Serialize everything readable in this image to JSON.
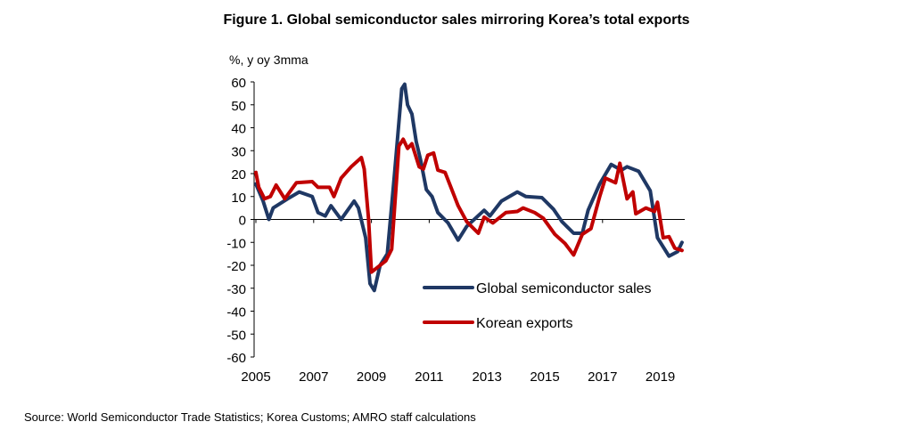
{
  "chart_data": {
    "type": "line",
    "title": "Figure 1. Global semiconductor sales mirroring Korea’s total exports",
    "ylabel": "%, y oy 3mma",
    "xlabel": "",
    "source": "Source: World Semiconductor Trade Statistics; Korea Customs; AMRO staff calculations",
    "ylim": [
      -60,
      60
    ],
    "xlim": [
      2005,
      2019.8
    ],
    "yticks": [
      60,
      50,
      40,
      30,
      20,
      10,
      0,
      -10,
      -20,
      -30,
      -40,
      -50,
      -60
    ],
    "xticks": [
      "2005",
      "2007",
      "2009",
      "2011",
      "2013",
      "2015",
      "2017",
      "2019"
    ],
    "legend_position": "bottom-right inside",
    "series": [
      {
        "name": "Global semiconductor sales",
        "color": "#1f3864",
        "points": [
          [
            2005.0,
            15.5
          ],
          [
            2005.25,
            8
          ],
          [
            2005.45,
            0
          ],
          [
            2005.6,
            5
          ],
          [
            2006.1,
            9
          ],
          [
            2006.5,
            12
          ],
          [
            2006.95,
            10
          ],
          [
            2007.15,
            3
          ],
          [
            2007.4,
            1.5
          ],
          [
            2007.6,
            6
          ],
          [
            2007.95,
            0
          ],
          [
            2008.4,
            8
          ],
          [
            2008.55,
            5
          ],
          [
            2008.8,
            -8
          ],
          [
            2008.95,
            -28
          ],
          [
            2009.1,
            -31
          ],
          [
            2009.3,
            -20
          ],
          [
            2009.55,
            -15
          ],
          [
            2009.8,
            20
          ],
          [
            2010.05,
            57
          ],
          [
            2010.15,
            59
          ],
          [
            2010.25,
            50
          ],
          [
            2010.4,
            46
          ],
          [
            2010.55,
            34
          ],
          [
            2010.7,
            26
          ],
          [
            2010.9,
            13
          ],
          [
            2011.1,
            10
          ],
          [
            2011.3,
            3
          ],
          [
            2011.65,
            -1.5
          ],
          [
            2012.0,
            -9
          ],
          [
            2012.3,
            -3
          ],
          [
            2012.9,
            4
          ],
          [
            2013.1,
            1.5
          ],
          [
            2013.5,
            8
          ],
          [
            2014.05,
            12
          ],
          [
            2014.35,
            10
          ],
          [
            2014.9,
            9.5
          ],
          [
            2015.3,
            4.5
          ],
          [
            2015.6,
            -1
          ],
          [
            2016.0,
            -6
          ],
          [
            2016.3,
            -6
          ],
          [
            2016.5,
            4
          ],
          [
            2016.9,
            15.5
          ],
          [
            2017.3,
            24
          ],
          [
            2017.65,
            21.5
          ],
          [
            2017.85,
            23
          ],
          [
            2018.25,
            21
          ],
          [
            2018.65,
            12.5
          ],
          [
            2018.9,
            -8
          ],
          [
            2019.3,
            -16
          ],
          [
            2019.6,
            -14
          ],
          [
            2019.75,
            -10
          ]
        ]
      },
      {
        "name": "Korean exports",
        "color": "#c00000",
        "points": [
          [
            2005.0,
            20.5
          ],
          [
            2005.1,
            14
          ],
          [
            2005.3,
            9
          ],
          [
            2005.5,
            10
          ],
          [
            2005.7,
            15
          ],
          [
            2006.0,
            9
          ],
          [
            2006.4,
            16
          ],
          [
            2006.95,
            16.5
          ],
          [
            2007.15,
            14
          ],
          [
            2007.55,
            14
          ],
          [
            2007.7,
            10
          ],
          [
            2007.95,
            18
          ],
          [
            2008.3,
            23
          ],
          [
            2008.65,
            27
          ],
          [
            2008.75,
            22
          ],
          [
            2008.9,
            0
          ],
          [
            2009.0,
            -23
          ],
          [
            2009.2,
            -21
          ],
          [
            2009.5,
            -18
          ],
          [
            2009.7,
            -13
          ],
          [
            2009.95,
            32
          ],
          [
            2010.1,
            35
          ],
          [
            2010.25,
            31
          ],
          [
            2010.4,
            33
          ],
          [
            2010.65,
            23
          ],
          [
            2010.8,
            22
          ],
          [
            2010.95,
            28
          ],
          [
            2011.15,
            29
          ],
          [
            2011.3,
            21.5
          ],
          [
            2011.55,
            20.5
          ],
          [
            2012.0,
            6
          ],
          [
            2012.3,
            -1
          ],
          [
            2012.7,
            -6
          ],
          [
            2012.9,
            1
          ],
          [
            2013.2,
            -1.5
          ],
          [
            2013.65,
            3
          ],
          [
            2014.05,
            3.5
          ],
          [
            2014.25,
            5
          ],
          [
            2014.65,
            3
          ],
          [
            2014.95,
            0.5
          ],
          [
            2015.35,
            -6.5
          ],
          [
            2015.7,
            -10.5
          ],
          [
            2016.0,
            -15.5
          ],
          [
            2016.3,
            -6.5
          ],
          [
            2016.6,
            -4
          ],
          [
            2016.9,
            10
          ],
          [
            2017.1,
            18
          ],
          [
            2017.45,
            16
          ],
          [
            2017.6,
            24.5
          ],
          [
            2017.85,
            9
          ],
          [
            2018.05,
            12
          ],
          [
            2018.15,
            2.5
          ],
          [
            2018.5,
            5
          ],
          [
            2018.8,
            3.5
          ],
          [
            2018.9,
            7.5
          ],
          [
            2019.1,
            -8
          ],
          [
            2019.3,
            -7.5
          ],
          [
            2019.5,
            -12.5
          ],
          [
            2019.75,
            -13.5
          ]
        ]
      }
    ]
  }
}
